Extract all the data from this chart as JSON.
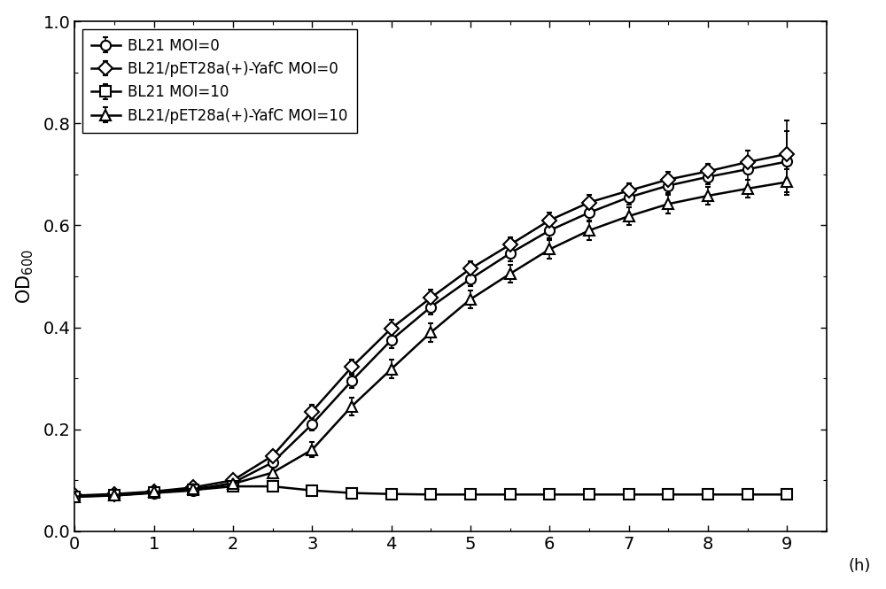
{
  "xlabel": "(h)",
  "ylabel": "OD$_{600}$",
  "xlim": [
    0,
    9.5
  ],
  "ylim": [
    0.0,
    1.0
  ],
  "xticks": [
    0,
    1,
    2,
    3,
    4,
    5,
    6,
    7,
    8,
    9
  ],
  "yticks": [
    0.0,
    0.2,
    0.4,
    0.6,
    0.8,
    1.0
  ],
  "time_points": [
    0,
    0.5,
    1.0,
    1.5,
    2.0,
    2.5,
    3.0,
    3.5,
    4.0,
    4.5,
    5.0,
    5.5,
    6.0,
    6.5,
    7.0,
    7.5,
    8.0,
    8.5,
    9.0
  ],
  "bl21_moi0": [
    0.068,
    0.07,
    0.075,
    0.08,
    0.095,
    0.135,
    0.21,
    0.295,
    0.375,
    0.44,
    0.495,
    0.545,
    0.59,
    0.625,
    0.655,
    0.678,
    0.695,
    0.71,
    0.725
  ],
  "bl21_moi0_err": [
    0.004,
    0.004,
    0.005,
    0.005,
    0.006,
    0.008,
    0.012,
    0.014,
    0.015,
    0.015,
    0.015,
    0.015,
    0.015,
    0.015,
    0.015,
    0.015,
    0.015,
    0.02,
    0.06
  ],
  "bl21pet_moi0": [
    0.07,
    0.073,
    0.078,
    0.086,
    0.1,
    0.148,
    0.235,
    0.322,
    0.398,
    0.458,
    0.515,
    0.562,
    0.61,
    0.645,
    0.668,
    0.69,
    0.706,
    0.724,
    0.74
  ],
  "bl21pet_moi0_err": [
    0.004,
    0.004,
    0.005,
    0.005,
    0.007,
    0.01,
    0.013,
    0.015,
    0.016,
    0.016,
    0.015,
    0.015,
    0.015,
    0.015,
    0.015,
    0.015,
    0.015,
    0.022,
    0.065
  ],
  "bl21_moi10": [
    0.068,
    0.07,
    0.076,
    0.081,
    0.088,
    0.088,
    0.08,
    0.075,
    0.073,
    0.072,
    0.072,
    0.072,
    0.072,
    0.072,
    0.072,
    0.072,
    0.072,
    0.072,
    0.072
  ],
  "bl21_moi10_err": [
    0.004,
    0.004,
    0.004,
    0.004,
    0.004,
    0.005,
    0.004,
    0.004,
    0.003,
    0.003,
    0.003,
    0.003,
    0.003,
    0.003,
    0.003,
    0.003,
    0.003,
    0.003,
    0.003
  ],
  "bl21pet_moi10": [
    0.068,
    0.071,
    0.077,
    0.083,
    0.093,
    0.115,
    0.16,
    0.245,
    0.318,
    0.39,
    0.455,
    0.505,
    0.553,
    0.59,
    0.618,
    0.642,
    0.658,
    0.672,
    0.685
  ],
  "bl21pet_moi10_err": [
    0.004,
    0.005,
    0.005,
    0.006,
    0.008,
    0.012,
    0.015,
    0.017,
    0.018,
    0.018,
    0.018,
    0.018,
    0.018,
    0.018,
    0.018,
    0.018,
    0.018,
    0.018,
    0.025
  ],
  "legend_labels": [
    "BL21 MOI=0",
    "BL21/pET28a(+)-YafC MOI=0",
    "BL21 MOI=10",
    "BL21/pET28a(+)-YafC MOI=10"
  ],
  "line_color": "#000000",
  "background_color": "#ffffff"
}
